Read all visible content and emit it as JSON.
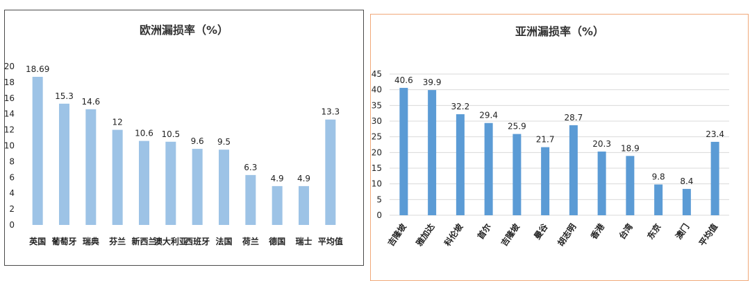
{
  "chart_data": [
    {
      "type": "bar",
      "title": "欧洲漏损率（%）",
      "categories": [
        "英国",
        "葡萄牙",
        "瑞典",
        "芬兰",
        "新西兰",
        "澳大利亚",
        "西班牙",
        "法国",
        "荷兰",
        "德国",
        "瑞士",
        "平均值"
      ],
      "values": [
        18.69,
        15.3,
        14.6,
        12,
        10.6,
        10.5,
        9.6,
        9.5,
        6.3,
        4.9,
        4.9,
        13.3
      ],
      "value_labels": [
        "18.69",
        "15.3",
        "14.6",
        "12",
        "10.6",
        "10.5",
        "9.6",
        "9.5",
        "6.3",
        "4.9",
        "4.9",
        "13.3"
      ],
      "yticks": [
        "0",
        "2",
        "4",
        "6",
        "8",
        "10",
        "12",
        "14",
        "16",
        "18",
        "20"
      ],
      "ylim": [
        0,
        20
      ],
      "grid": false,
      "bar_color": "#9dc3e6",
      "xlabel": "",
      "ylabel": ""
    },
    {
      "type": "bar",
      "title": "亚洲漏损率（%）",
      "categories": [
        "吉隆坡",
        "雅加达",
        "科伦坡",
        "首尔",
        "吉隆坡",
        "曼谷",
        "胡志明",
        "香港",
        "台湾",
        "东京",
        "澳门",
        "平均值"
      ],
      "values": [
        40.6,
        39.9,
        32.2,
        29.4,
        25.9,
        21.7,
        28.7,
        20.3,
        18.9,
        9.8,
        8.4,
        23.4
      ],
      "value_labels": [
        "40.6",
        "39.9",
        "32.2",
        "29.4",
        "25.9",
        "21.7",
        "28.7",
        "20.3",
        "18.9",
        "9.8",
        "8.4",
        "23.4"
      ],
      "yticks": [
        "0",
        "5",
        "10",
        "15",
        "20",
        "25",
        "30",
        "35",
        "40",
        "45"
      ],
      "ylim": [
        0,
        45
      ],
      "grid": true,
      "bar_color": "#5b9bd5",
      "xlabel": "",
      "ylabel": ""
    }
  ]
}
